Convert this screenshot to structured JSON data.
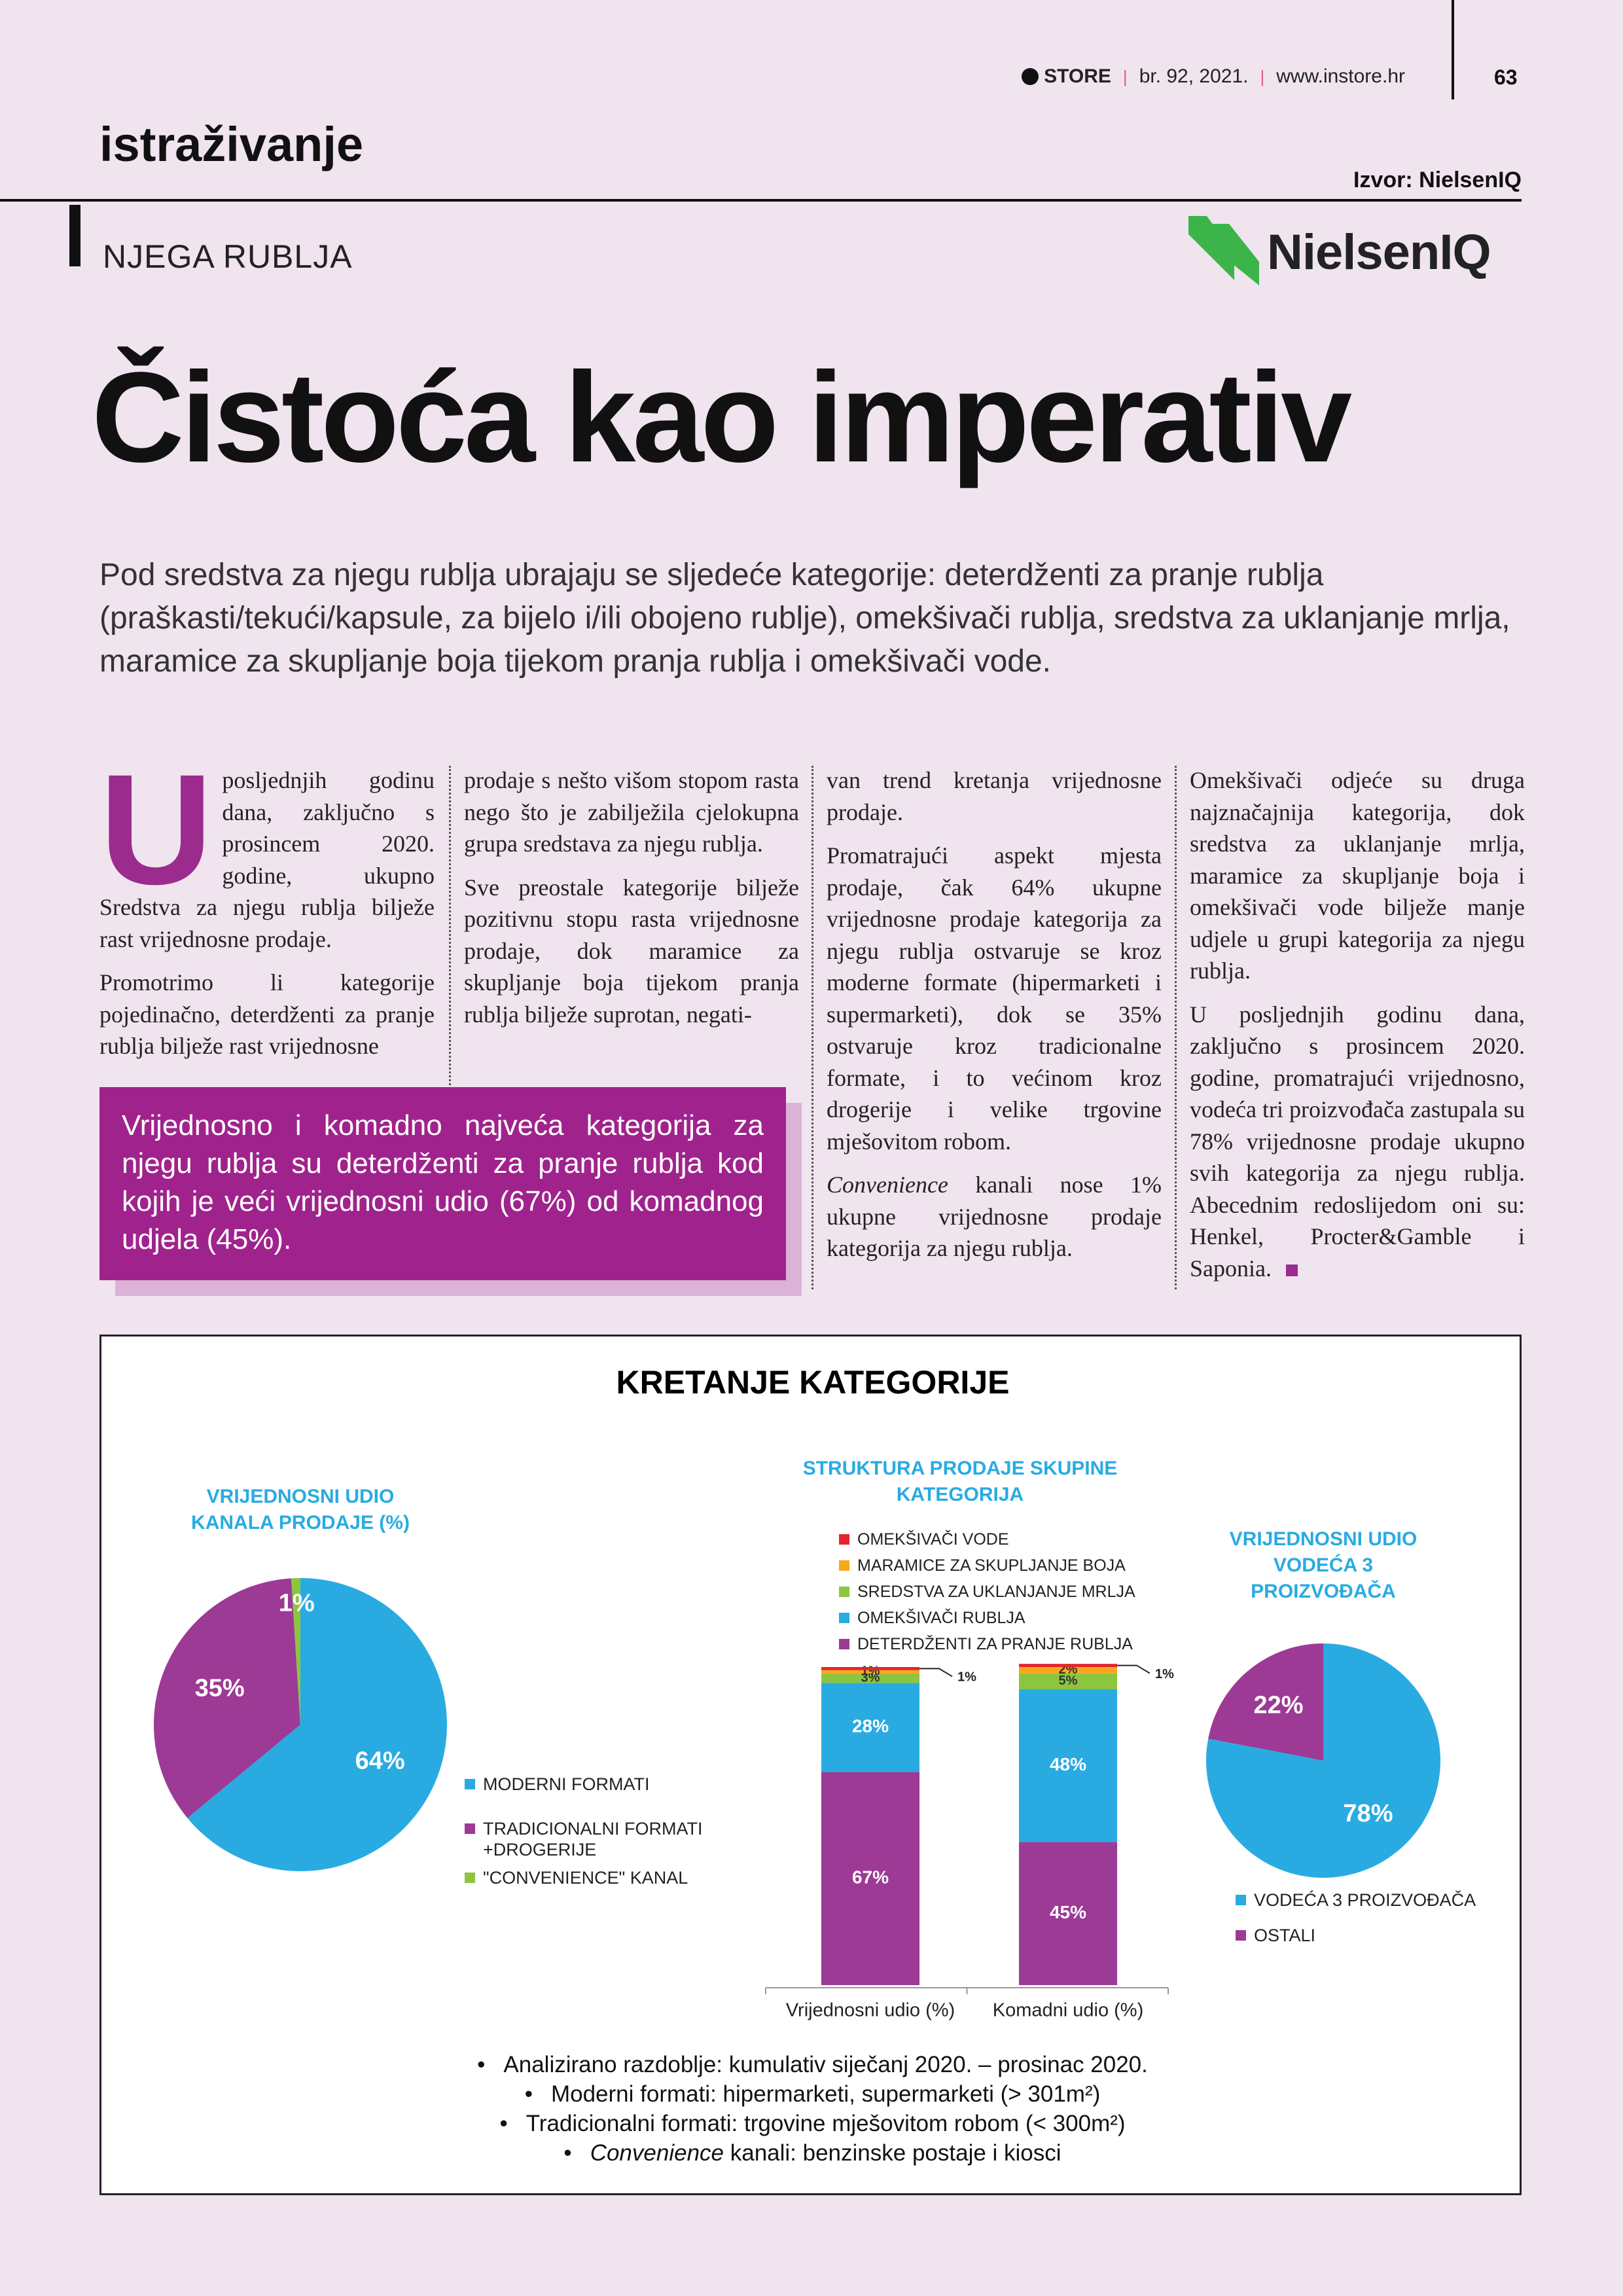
{
  "header": {
    "brand": "STORE",
    "issue": "br. 92, 2021.",
    "website": "www.instore.hr",
    "page_number": "63",
    "section": "istraživanje",
    "source": "Izvor: NielsenIQ",
    "category": "NJEGA RUBLJA",
    "logo": "NielsenIQ"
  },
  "article": {
    "title": "Čistoća kao imperativ",
    "lead": "Pod sredstva za njegu rublja ubrajaju se sljedeće kategorije: deterdženti za pranje rublja (praškasti/tekući/kapsule, za bijelo i/ili obojeno rublje), omekšivači rublja, sredstva za uklanjanje mrlja, maramice za skupljanje boja tijekom pranja rublja i omekšivači vode.",
    "drop_cap": "U",
    "columns": [
      [
        "posljednjih godinu dana, zaključno s prosincem 2020. godine, ukupno Sredstva za njegu rublja bilježe rast vrijednosne prodaje.",
        "Promotrimo li kategorije pojedinačno, deterdženti za pranje rublja bilježe rast vrijednosne"
      ],
      [
        "prodaje s nešto višom stopom rasta nego što je zabilježila cjelokupna grupa sredstava za njegu rublja.",
        "Sve preostale kategorije bilježe pozitivnu stopu rasta vrijednosne prodaje, dok maramice za skupljanje boja tijekom pranja rublja bilježe suprotan, negati-"
      ],
      [
        "van trend kretanja vrijednosne prodaje.",
        "Promatrajući aspekt mjesta prodaje, čak 64% ukupne vrijednosne prodaje kategorija za njegu rublja ostvaruje se kroz moderne formate (hipermarketi i supermarketi), dok se 35% ostvaruje kroz tradicionalne formate, i to većinom kroz drogerije i velike trgovine mješovitom robom.",
        [
          "Convenience",
          " kanali nose 1% ukupne vrijednosne prodaje kategorija za njegu rublja."
        ]
      ],
      [
        "Omekšivači odjeće su druga najznačajnija kategorija, dok sredstva za uklanjanje mrlja, maramice za skupljanje boja i omekšivači vode bilježe manje udjele u grupi kategorija za njegu rublja.",
        "U posljednjih godinu dana, zaključno s prosincem 2020. godine, promatrajući vrijednosno, vodeća tri proizvođača zastupala su 78% vrijednosne prodaje ukupno svih kategorija za njegu rublja. Abecednim redoslijedom oni su: Henkel, Procter&Gamble i Saponia."
      ]
    ],
    "callout": "Vrijednosno i komadno najveća kategorija za njegu rublja su deterdženti za pranje rublja kod kojih je veći vrijednosni udio (67%) od komadnog udjela (45%)."
  },
  "infographic": {
    "title": "KRETANJE KATEGORIJE",
    "notes": [
      "Analizirano razdoblje: kumulativ siječanj 2020. – prosinac 2020.",
      "Moderni formati: hipermarketi, supermarketi (> 301m²)",
      "Tradicionalni formati: trgovine mješovitom robom (< 300m²)",
      [
        "Convenience",
        " kanali: benzinske postaje i kiosci"
      ]
    ]
  },
  "chart_data": [
    {
      "type": "pie",
      "title": "VRIJEDNOSNI UDIO KANALA PRODAJE (%)",
      "categories": [
        "MODERNI FORMATI",
        "TRADICIONALNI FORMATI +DROGERIJE",
        "\"CONVENIENCE\" KANAL"
      ],
      "values": [
        64,
        35,
        1
      ],
      "value_labels": [
        "64%",
        "35%",
        "1%"
      ],
      "colors": [
        "#29abe2",
        "#9c3a95",
        "#8cc63f"
      ]
    },
    {
      "type": "stacked_bar",
      "title": "STRUKTURA PRODAJE SKUPINE KATEGORIJA",
      "categories": [
        "Vrijednosni udio (%)",
        "Komadni udio (%)"
      ],
      "ylim": [
        0,
        100
      ],
      "series": [
        {
          "name": "DETERDŽENTI ZA PRANJE RUBLJA",
          "color": "#9c3a95",
          "values": [
            67,
            45
          ],
          "value_labels": [
            "67%",
            "45%"
          ]
        },
        {
          "name": "OMEKŠIVAČI RUBLJA",
          "color": "#29abe2",
          "values": [
            28,
            48
          ],
          "value_labels": [
            "28%",
            "48%"
          ]
        },
        {
          "name": "SREDSTVA ZA UKLANJANJE MRLJA",
          "color": "#8cc63f",
          "values": [
            3,
            5
          ],
          "value_labels": [
            "3%",
            "5%"
          ]
        },
        {
          "name": "MARAMICE ZA SKUPLJANJE BOJA",
          "color": "#f7a81b",
          "values": [
            1,
            2
          ],
          "value_labels": [
            "1%",
            "2%"
          ]
        },
        {
          "name": "OMEKŠIVAČI VODE",
          "color": "#e3262d",
          "values": [
            1,
            1
          ],
          "value_labels": [
            "1%",
            "1%"
          ]
        }
      ]
    },
    {
      "type": "pie",
      "title": "VRIJEDNOSNI UDIO VODEĆA 3 PROIZVOĐAČA",
      "categories": [
        "VODEĆA 3 PROIZVOĐAČA",
        "OSTALI"
      ],
      "values": [
        78,
        22
      ],
      "value_labels": [
        "78%",
        "22%"
      ],
      "colors": [
        "#29abe2",
        "#9c3a95"
      ]
    }
  ]
}
